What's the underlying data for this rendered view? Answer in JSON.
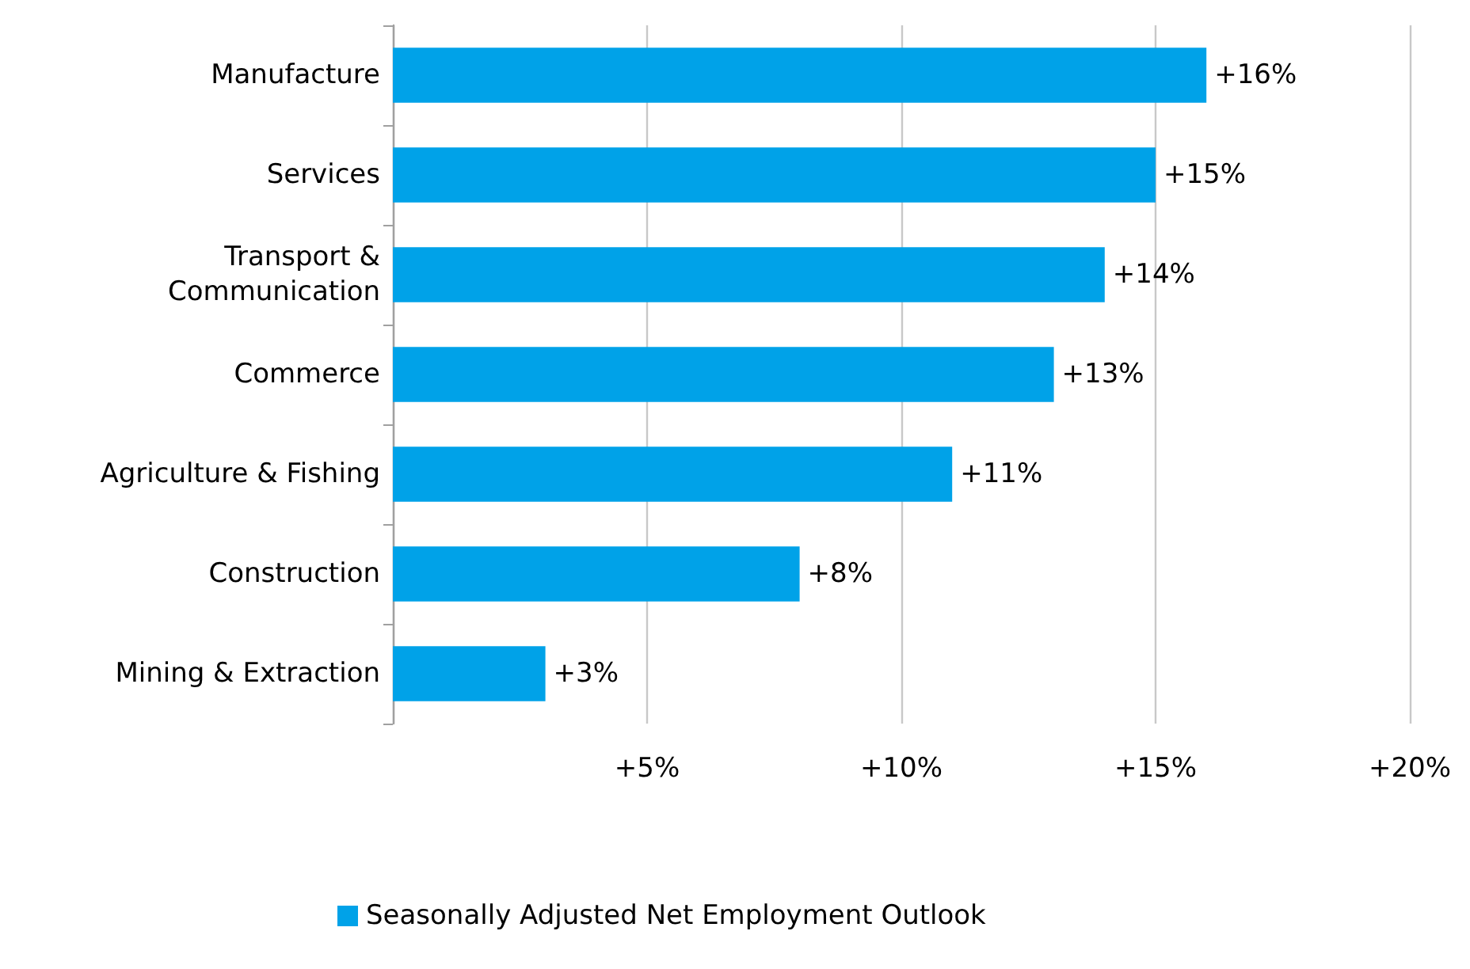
{
  "chart_data": {
    "type": "bar",
    "orientation": "horizontal",
    "categories": [
      "Manufacture",
      "Services",
      "Transport & Communication",
      "Commerce",
      "Agriculture & Fishing",
      "Construction",
      "Mining & Extraction"
    ],
    "series": [
      {
        "name": "Seasonally Adjusted Net Employment Outlook",
        "color": "#00a2e8",
        "values": [
          16,
          15,
          14,
          13,
          11,
          8,
          3
        ],
        "value_labels": [
          "+16%",
          "+15%",
          "+14%",
          "+13%",
          "+11%",
          "+8%",
          "+3%"
        ]
      }
    ],
    "xlim": [
      0,
      20
    ],
    "xticks": [
      {
        "value": 0,
        "label": null
      },
      {
        "value": 5,
        "label": "+5%"
      },
      {
        "value": 10,
        "label": "+10%"
      },
      {
        "value": 15,
        "label": "+15%"
      },
      {
        "value": 20,
        "label": "+20%"
      }
    ],
    "grid": "x",
    "legend": "bottom"
  }
}
